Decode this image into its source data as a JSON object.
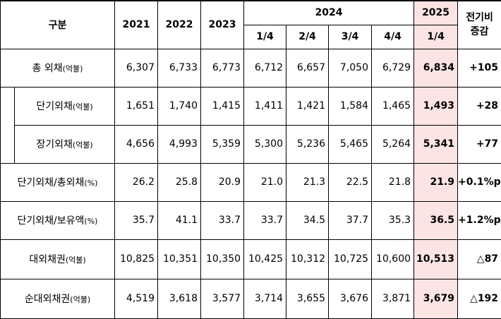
{
  "header": {
    "category": "구분",
    "years": [
      "2021",
      "2022",
      "2023"
    ],
    "year_2024": "2024",
    "year_2025": "2025",
    "change": "전기비\n증감",
    "quarters_2024": [
      "1/4",
      "2/4",
      "3/4",
      "4/4"
    ],
    "quarter_2025": "1/4"
  },
  "rows": [
    {
      "label": "총 외채",
      "unit": "(억불)",
      "v2021": "6,307",
      "v2022": "6,733",
      "v2023": "6,773",
      "q1": "6,712",
      "q2": "6,657",
      "q3": "7,050",
      "q4": "6,729",
      "q2025": "6,834",
      "change": "+105"
    },
    {
      "label": "단기외채",
      "unit": "(억불)",
      "v2021": "1,651",
      "v2022": "1,740",
      "v2023": "1,415",
      "q1": "1,411",
      "q2": "1,421",
      "q3": "1,584",
      "q4": "1,465",
      "q2025": "1,493",
      "change": "+28"
    },
    {
      "label": "장기외채",
      "unit": "(억불)",
      "v2021": "4,656",
      "v2022": "4,993",
      "v2023": "5,359",
      "q1": "5,300",
      "q2": "5,236",
      "q3": "5,465",
      "q4": "5,264",
      "q2025": "5,341",
      "change": "+77"
    },
    {
      "label": "단기외채/총외채",
      "unit": "(%)",
      "v2021": "26.2",
      "v2022": "25.8",
      "v2023": "20.9",
      "q1": "21.0",
      "q2": "21.3",
      "q3": "22.5",
      "q4": "21.8",
      "q2025": "21.9",
      "change": "+0.1%p"
    },
    {
      "label": "단기외채/보유액",
      "unit": "(%)",
      "v2021": "35.7",
      "v2022": "41.1",
      "v2023": "33.7",
      "q1": "33.7",
      "q2": "34.5",
      "q3": "37.7",
      "q4": "35.3",
      "q2025": "36.5",
      "change": "+1.2%p"
    },
    {
      "label": "대외채권",
      "unit": "(억불)",
      "v2021": "10,825",
      "v2022": "10,351",
      "v2023": "10,350",
      "q1": "10,425",
      "q2": "10,312",
      "q3": "10,725",
      "q4": "10,600",
      "q2025": "10,513",
      "change": "△87"
    },
    {
      "label": "순대외채권",
      "unit": "(억불)",
      "v2021": "4,519",
      "v2022": "3,618",
      "v2023": "3,577",
      "q1": "3,714",
      "q2": "3,655",
      "q3": "3,676",
      "q4": "3,871",
      "q2025": "3,679",
      "change": "△192"
    }
  ]
}
